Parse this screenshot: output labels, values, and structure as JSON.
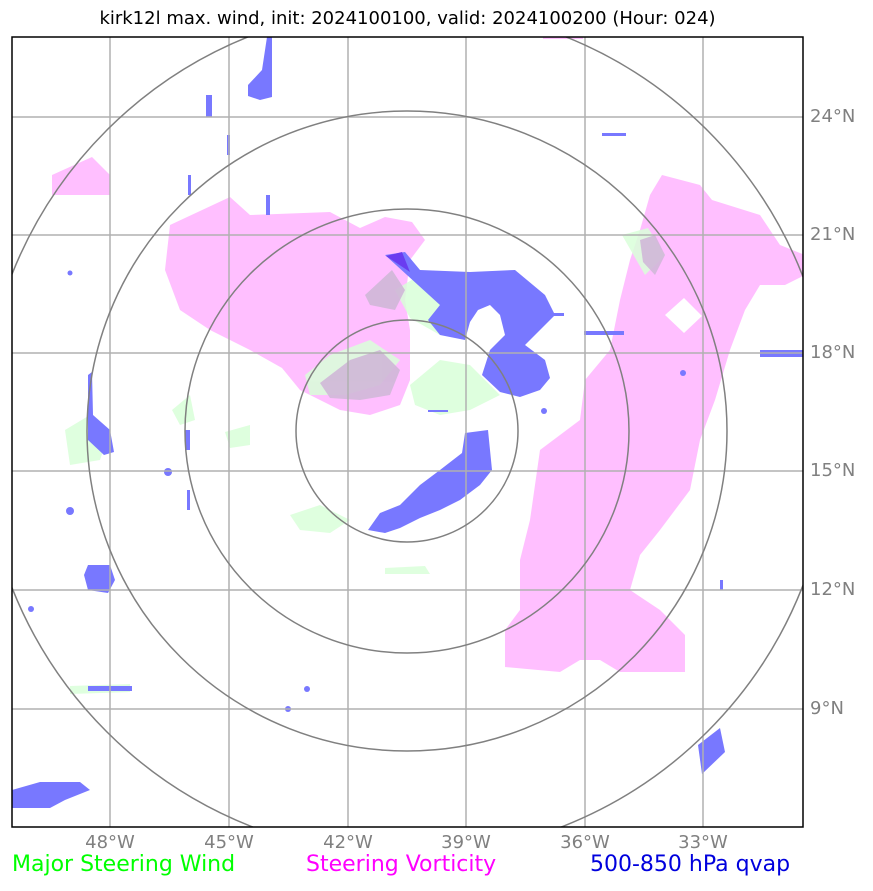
{
  "title": "kirk12l max. wind, init: 2024100100, valid: 2024100200 (Hour: 024)",
  "lat_ticks": [
    "24°N",
    "21°N",
    "18°N",
    "15°N",
    "12°N",
    "9°N"
  ],
  "lon_ticks": [
    "48°W",
    "45°W",
    "42°W",
    "39°W",
    "36°W",
    "33°W"
  ],
  "legend": {
    "major_steering_wind": {
      "label": "Major Steering Wind",
      "color": "#00ff00"
    },
    "steering_vorticity": {
      "label": "Steering Vorticity",
      "color": "#ff00ff"
    },
    "qvap": {
      "label": "500-850 hPa qvap",
      "color": "#0000dd"
    }
  },
  "colors": {
    "wind_fill": "#d9ffd9",
    "vorticity_fill": "#ffbfff",
    "qvap_fill": "#7878ff",
    "ring": "#808080",
    "grid": "#b0b0b0"
  }
}
